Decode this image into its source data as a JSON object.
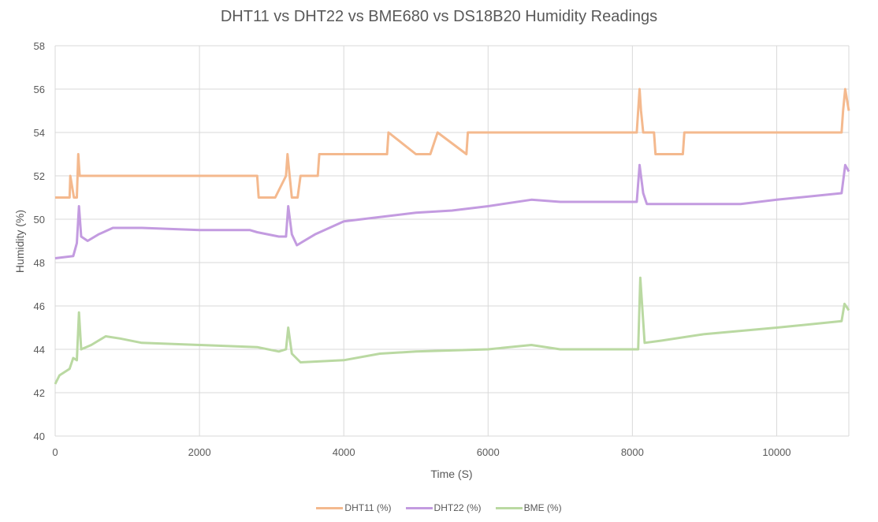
{
  "chart_data": {
    "type": "line",
    "title": "DHT11 vs DHT22 vs BME680 vs DS18B20 Humidity Readings",
    "xlabel": "Time (S)",
    "ylabel": "Humidity (%)",
    "xlim": [
      0,
      11000
    ],
    "ylim": [
      40,
      58
    ],
    "x_ticks": [
      "0",
      "2000",
      "4000",
      "6000",
      "8000",
      "10000"
    ],
    "y_ticks": [
      "40",
      "42",
      "44",
      "46",
      "48",
      "50",
      "52",
      "54",
      "56",
      "58"
    ],
    "grid": true,
    "legend_position": "bottom",
    "series": [
      {
        "name": "DHT11 (%)",
        "color": "#F4B98E",
        "points": [
          [
            0,
            51
          ],
          [
            200,
            51
          ],
          [
            210,
            52
          ],
          [
            260,
            51
          ],
          [
            300,
            51
          ],
          [
            320,
            53
          ],
          [
            340,
            52
          ],
          [
            2800,
            52
          ],
          [
            2820,
            51
          ],
          [
            3050,
            51
          ],
          [
            3200,
            52
          ],
          [
            3220,
            53
          ],
          [
            3250,
            52
          ],
          [
            3280,
            51
          ],
          [
            3360,
            51
          ],
          [
            3400,
            52
          ],
          [
            3640,
            52
          ],
          [
            3660,
            53
          ],
          [
            4600,
            53
          ],
          [
            4620,
            54
          ],
          [
            5000,
            53
          ],
          [
            5200,
            53
          ],
          [
            5300,
            54
          ],
          [
            5700,
            53
          ],
          [
            5720,
            54
          ],
          [
            8060,
            54
          ],
          [
            8080,
            55
          ],
          [
            8100,
            56
          ],
          [
            8120,
            55
          ],
          [
            8150,
            54
          ],
          [
            8300,
            54
          ],
          [
            8320,
            53
          ],
          [
            8700,
            53
          ],
          [
            8720,
            54
          ],
          [
            10900,
            54
          ],
          [
            10920,
            55
          ],
          [
            10950,
            56
          ],
          [
            11000,
            55
          ]
        ]
      },
      {
        "name": "DHT22 (%)",
        "color": "#C39BE0",
        "points": [
          [
            0,
            48.2
          ],
          [
            250,
            48.3
          ],
          [
            300,
            48.9
          ],
          [
            330,
            50.6
          ],
          [
            360,
            49.2
          ],
          [
            450,
            49.0
          ],
          [
            600,
            49.3
          ],
          [
            800,
            49.6
          ],
          [
            1200,
            49.6
          ],
          [
            2000,
            49.5
          ],
          [
            2700,
            49.5
          ],
          [
            2800,
            49.4
          ],
          [
            3100,
            49.2
          ],
          [
            3200,
            49.2
          ],
          [
            3230,
            50.6
          ],
          [
            3280,
            49.3
          ],
          [
            3350,
            48.8
          ],
          [
            3600,
            49.3
          ],
          [
            4000,
            49.9
          ],
          [
            4500,
            50.1
          ],
          [
            5000,
            50.3
          ],
          [
            5500,
            50.4
          ],
          [
            6000,
            50.6
          ],
          [
            6600,
            50.9
          ],
          [
            7000,
            50.8
          ],
          [
            8000,
            50.8
          ],
          [
            8060,
            50.8
          ],
          [
            8100,
            52.5
          ],
          [
            8150,
            51.2
          ],
          [
            8200,
            50.7
          ],
          [
            9000,
            50.7
          ],
          [
            9500,
            50.7
          ],
          [
            10000,
            50.9
          ],
          [
            10900,
            51.2
          ],
          [
            10950,
            52.5
          ],
          [
            11000,
            52.2
          ]
        ]
      },
      {
        "name": "BME (%)",
        "color": "#BAD9A2",
        "points": [
          [
            0,
            42.4
          ],
          [
            60,
            42.8
          ],
          [
            200,
            43.1
          ],
          [
            250,
            43.6
          ],
          [
            300,
            43.5
          ],
          [
            330,
            45.7
          ],
          [
            360,
            44.0
          ],
          [
            500,
            44.2
          ],
          [
            700,
            44.6
          ],
          [
            900,
            44.5
          ],
          [
            1200,
            44.3
          ],
          [
            2000,
            44.2
          ],
          [
            2800,
            44.1
          ],
          [
            3100,
            43.9
          ],
          [
            3200,
            44.0
          ],
          [
            3230,
            45.0
          ],
          [
            3280,
            43.8
          ],
          [
            3400,
            43.4
          ],
          [
            4000,
            43.5
          ],
          [
            4500,
            43.8
          ],
          [
            5000,
            43.9
          ],
          [
            6000,
            44.0
          ],
          [
            6600,
            44.2
          ],
          [
            7000,
            44.0
          ],
          [
            8000,
            44.0
          ],
          [
            8080,
            44.0
          ],
          [
            8110,
            47.3
          ],
          [
            8170,
            44.3
          ],
          [
            8400,
            44.4
          ],
          [
            9000,
            44.7
          ],
          [
            10000,
            45.0
          ],
          [
            10900,
            45.3
          ],
          [
            10940,
            46.1
          ],
          [
            11000,
            45.8
          ]
        ]
      }
    ]
  },
  "legend": {
    "items": [
      {
        "label": "DHT11 (%)",
        "color": "#F4B98E"
      },
      {
        "label": "DHT22 (%)",
        "color": "#C39BE0"
      },
      {
        "label": "BME (%)",
        "color": "#BAD9A2"
      }
    ]
  }
}
